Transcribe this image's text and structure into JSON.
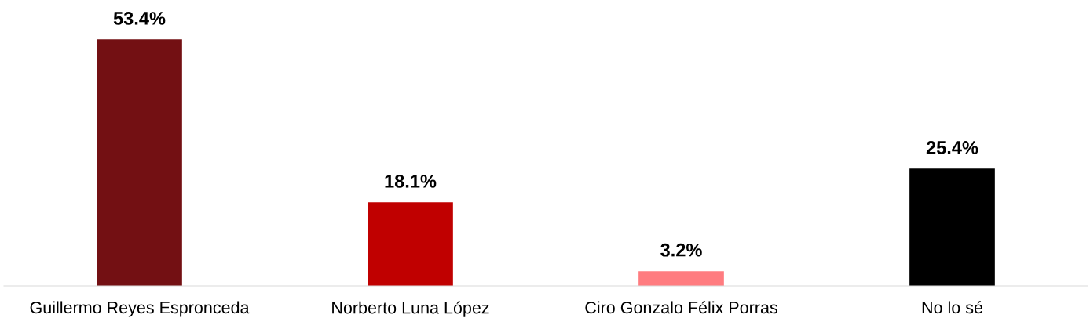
{
  "chart_data": {
    "type": "bar",
    "categories": [
      "Guillermo Reyes Espronceda",
      "Norberto Luna López",
      "Ciro Gonzalo Félix Porras",
      "No lo sé"
    ],
    "values": [
      53.4,
      18.1,
      3.2,
      25.4
    ],
    "colors": [
      "#731013",
      "#c00000",
      "#ff7c80",
      "#000000"
    ],
    "value_labels": [
      "53.4%",
      "18.1%",
      "3.2%",
      "25.4%"
    ],
    "grid": false,
    "legend": false
  }
}
